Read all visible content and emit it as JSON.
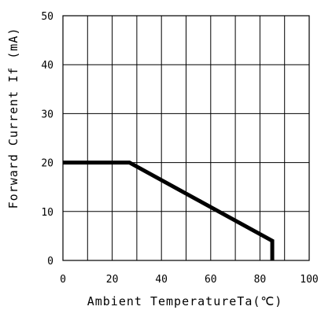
{
  "chart_data": {
    "type": "line",
    "xlabel": "Ambient TemperatureTa(℃)",
    "ylabel": "Forward Current If (mA)",
    "xlim": [
      0,
      100
    ],
    "ylim": [
      0,
      50
    ],
    "x_ticks": [
      0,
      20,
      40,
      60,
      80,
      100
    ],
    "y_ticks": [
      0,
      10,
      20,
      30,
      40,
      50
    ],
    "x_tick_labels": [
      "0",
      "20",
      "40",
      "60",
      "80",
      "100"
    ],
    "y_tick_labels": [
      "0",
      "10",
      "20",
      "30",
      "40",
      "50"
    ],
    "x_grid": [
      0,
      10,
      20,
      30,
      40,
      50,
      60,
      70,
      80,
      90,
      100
    ],
    "y_grid": [
      0,
      10,
      20,
      30,
      40,
      50
    ],
    "grid": true,
    "series": [
      {
        "x": [
          0,
          27,
          85,
          85
        ],
        "y": [
          20,
          20,
          4,
          0
        ],
        "color": "#000000"
      }
    ]
  }
}
